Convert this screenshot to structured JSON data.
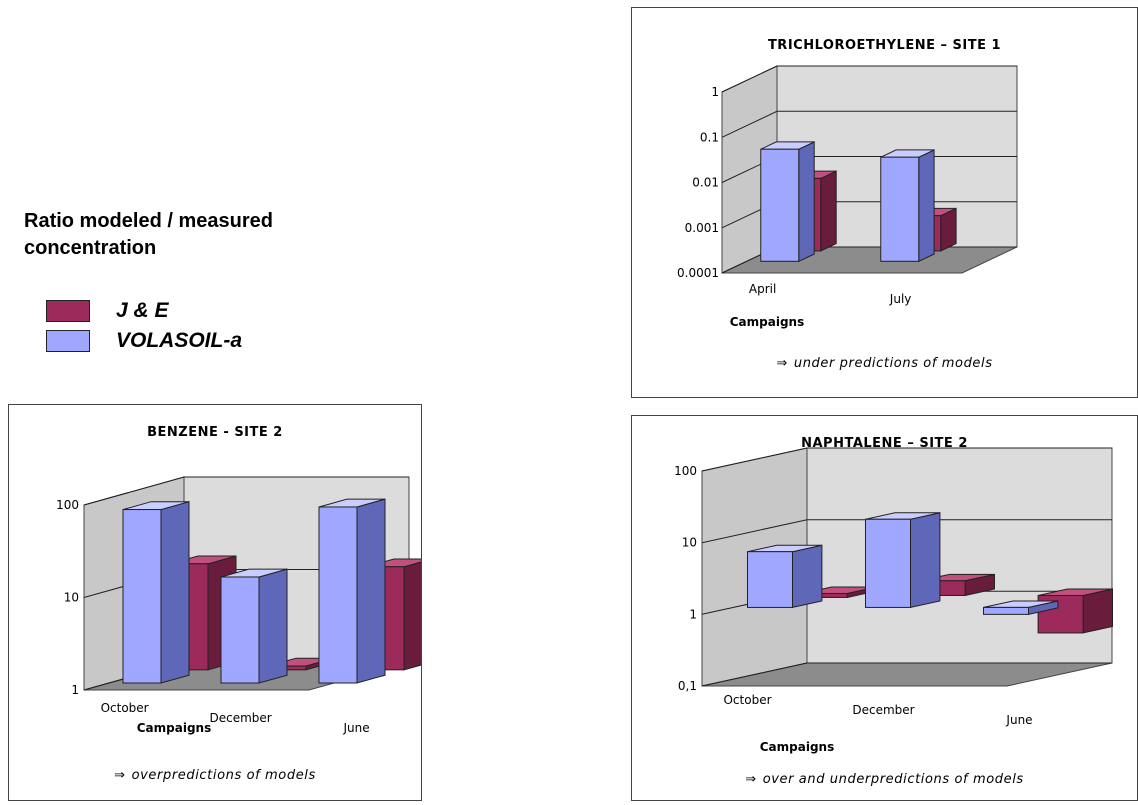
{
  "heading": "Ratio modeled / measured concentration",
  "legend": [
    {
      "label": "J & E",
      "color": "#9c2b5b"
    },
    {
      "label": "VOLASOIL-a",
      "color": "#9fa7ff"
    }
  ],
  "colors": {
    "je_front": "#9c2b5b",
    "je_side": "#6a1c3d",
    "je_top": "#c2507e",
    "vol_front": "#9fa7ff",
    "vol_side": "#5f67b9",
    "vol_top": "#c9ceff",
    "wall": "#dcdcdc",
    "floor": "#8c8c8c"
  },
  "chart_data": [
    {
      "type": "bar",
      "title": "TRICHLOROETHYLENE – SITE 1",
      "xlabel": "Campaigns",
      "note": "under predictions of models",
      "categories": [
        "April",
        "July"
      ],
      "yscale": "log",
      "ylim": [
        0.0001,
        1
      ],
      "yticks": [
        "1",
        "0.1",
        "0.01",
        "0.001",
        "0.0001"
      ],
      "series": [
        {
          "name": "VOLASOIL-a",
          "values": [
            0.03,
            0.02
          ]
        },
        {
          "name": "J & E",
          "values": [
            0.004,
            0.0006
          ]
        }
      ]
    },
    {
      "type": "bar",
      "title": "BENZENE - SITE 2",
      "xlabel": "Campaigns",
      "note": "overpredictions of models",
      "categories": [
        "October",
        "December",
        "June"
      ],
      "yscale": "log",
      "ylim": [
        1,
        100
      ],
      "yticks": [
        "100",
        "10",
        "1"
      ],
      "series": [
        {
          "name": "VOLASOIL-a",
          "values": [
            75,
            14,
            80
          ]
        },
        {
          "name": "J & E",
          "values": [
            14,
            1.1,
            13
          ]
        }
      ]
    },
    {
      "type": "bar",
      "title": "NAPHTALENE – SITE 2",
      "xlabel": "Campaigns",
      "note": "over and underpredictions of models",
      "categories": [
        "October",
        "December",
        "June"
      ],
      "yscale": "log",
      "ylim": [
        0.1,
        100
      ],
      "yticks": [
        "100",
        "10",
        "1",
        "0,1"
      ],
      "series": [
        {
          "name": "VOLASOIL-a",
          "values": [
            6,
            17,
            0.8
          ]
        },
        {
          "name": "J & E",
          "values": [
            1.1,
            1.6,
            0.3
          ]
        }
      ]
    }
  ]
}
